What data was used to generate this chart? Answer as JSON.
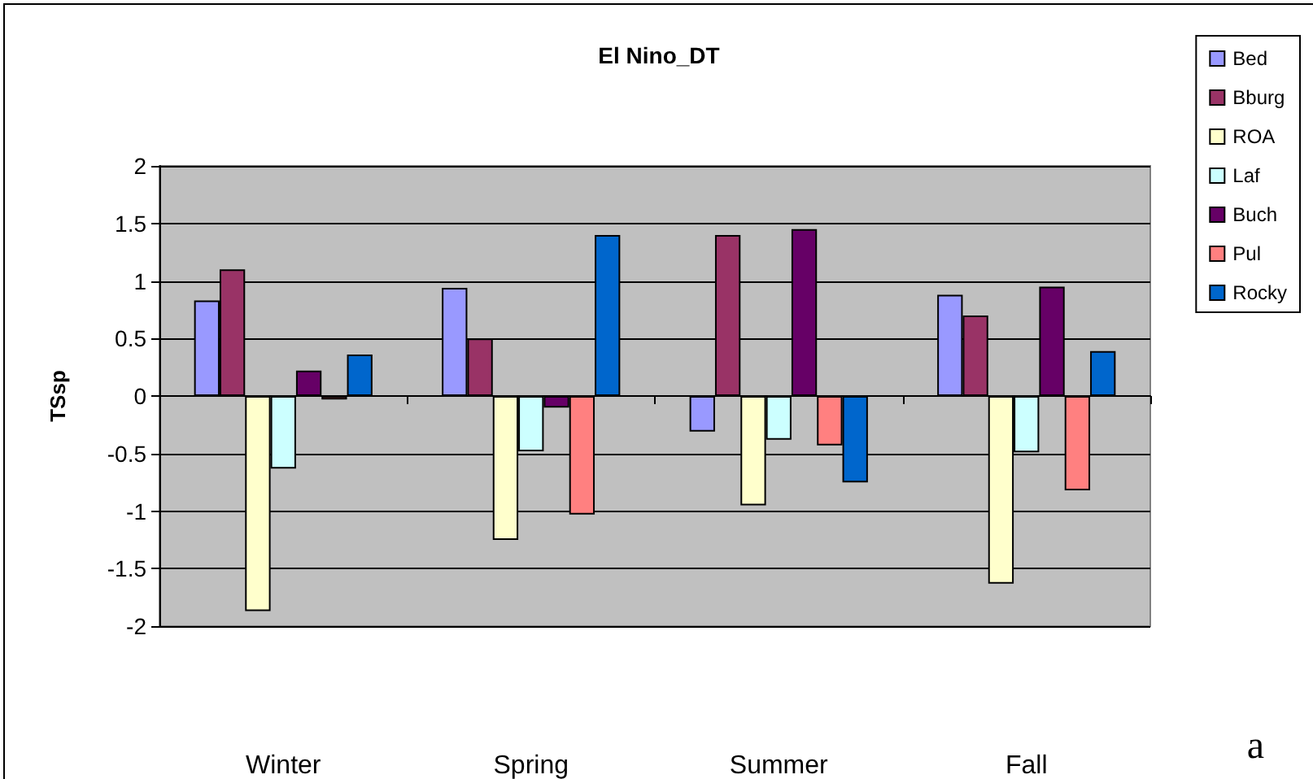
{
  "chart_data": {
    "type": "bar",
    "title": "El Nino_DT",
    "ylabel": "TSsp",
    "categories": [
      "Winter",
      "Spring",
      "Summer",
      "Fall"
    ],
    "series": [
      {
        "name": "Bed",
        "color": "#9999ff",
        "values": [
          0.83,
          0.94,
          -0.31,
          0.88
        ]
      },
      {
        "name": "Bburg",
        "color": "#993366",
        "values": [
          1.1,
          0.5,
          1.4,
          0.7
        ]
      },
      {
        "name": "ROA",
        "color": "#ffffcc",
        "values": [
          -1.87,
          -1.25,
          -0.95,
          -1.63
        ]
      },
      {
        "name": "Laf",
        "color": "#ccffff",
        "values": [
          -0.63,
          -0.48,
          -0.38,
          -0.49
        ]
      },
      {
        "name": "Buch",
        "color": "#660066",
        "values": [
          0.22,
          -0.1,
          1.45,
          0.95
        ]
      },
      {
        "name": "Pul",
        "color": "#ff8080",
        "values": [
          -0.03,
          -1.03,
          -0.43,
          -0.82
        ]
      },
      {
        "name": "Rocky",
        "color": "#0066cc",
        "values": [
          0.36,
          1.4,
          -0.75,
          0.39
        ]
      }
    ],
    "ylim": [
      -2,
      2
    ],
    "yticks": [
      -2,
      -1.5,
      -1,
      -0.5,
      0,
      0.5,
      1,
      1.5,
      2
    ],
    "grid": "y",
    "legend": "top right",
    "annotations": [
      "a"
    ]
  }
}
